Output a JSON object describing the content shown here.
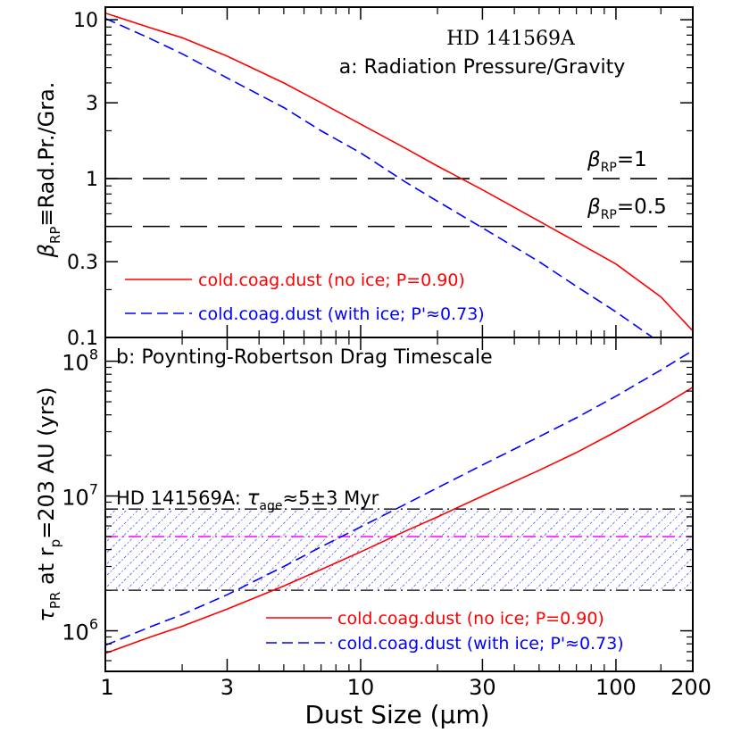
{
  "figure": {
    "xlabel": "Dust Size  (μm)",
    "x_ticks": [
      "1",
      "3",
      "10",
      "30",
      "100",
      "200"
    ]
  },
  "chart_data": [
    {
      "type": "line",
      "title": "HD 141569A",
      "subtitle": "a: Radiation Pressure/Gravity",
      "xlabel": "Dust Size  (μm)",
      "ylabel": "β_RP≡Rad.Pr./Gra.",
      "xscale": "log",
      "yscale": "log",
      "xlim": [
        1,
        200
      ],
      "ylim": [
        0.1,
        12
      ],
      "y_ticks": [
        "0.1",
        "0.3",
        "1",
        "3",
        "10"
      ],
      "x": [
        1,
        1.5,
        2,
        3,
        5,
        7,
        10,
        15,
        20,
        30,
        50,
        70,
        100,
        150,
        200
      ],
      "series": [
        {
          "name": "cold.coag.dust (no ice; P=0.90)",
          "color": "#ff0000",
          "dash": "solid",
          "values": [
            11.0,
            8.9,
            7.7,
            5.9,
            4.0,
            3.0,
            2.2,
            1.55,
            1.2,
            0.85,
            0.54,
            0.4,
            0.29,
            0.18,
            0.11
          ]
        },
        {
          "name": "cold.coag.dust (with ice; P'≈0.73)",
          "color": "#0000ff",
          "dash": "dashed",
          "values": [
            10.2,
            7.6,
            6.1,
            4.3,
            2.8,
            2.0,
            1.45,
            0.95,
            0.72,
            0.49,
            0.3,
            0.21,
            0.145,
            0.092,
            0.065
          ]
        }
      ],
      "reference_lines": [
        {
          "label": "β_RP=1",
          "y": 1,
          "color": "#000000"
        },
        {
          "label": "β_RP=0.5",
          "y": 0.5,
          "color": "#000000"
        }
      ],
      "legend": "bottom-left"
    },
    {
      "type": "line",
      "title": "b: Poynting-Robertson Drag Timescale",
      "xlabel": "Dust Size  (μm)",
      "ylabel": "τ_PR at r_p=203 AU (yrs)",
      "xscale": "log",
      "yscale": "log",
      "xlim": [
        1,
        200
      ],
      "ylim": [
        500000,
        150000000
      ],
      "y_ticks": [
        "10^6",
        "10^7",
        "10^8"
      ],
      "x": [
        1,
        1.5,
        2,
        3,
        5,
        7,
        10,
        15,
        20,
        30,
        50,
        70,
        100,
        150,
        200
      ],
      "series": [
        {
          "name": "cold.coag.dust (no ice; P=0.90)",
          "color": "#ff0000",
          "dash": "solid",
          "values": [
            680000,
            900000,
            1080000,
            1450000,
            2150000,
            2850000,
            3850000,
            5500000,
            7000000,
            10000000,
            15500000,
            21000000,
            30000000,
            46000000,
            64000000
          ]
        },
        {
          "name": "cold.coag.dust (with ice; P'≈0.73)",
          "color": "#0000ff",
          "dash": "dashed",
          "values": [
            780000,
            1070000,
            1320000,
            1850000,
            3000000,
            4200000,
            5900000,
            8700000,
            11500000,
            17000000,
            27500000,
            38000000,
            55000000,
            86000000,
            120000000
          ]
        }
      ],
      "annotation": {
        "text_prefix": "HD 141569A:  ",
        "tau": "τ",
        "sub": "age",
        "text_suffix": "≈5±3 Myr",
        "age_myr": 5,
        "range_myr": [
          2,
          8
        ]
      },
      "band": {
        "y_min": 2000000,
        "y_max": 8000000,
        "center": 5000000,
        "hatch_color": "#0000ff",
        "center_color": "#ff00ff"
      },
      "legend": "bottom-right"
    }
  ]
}
